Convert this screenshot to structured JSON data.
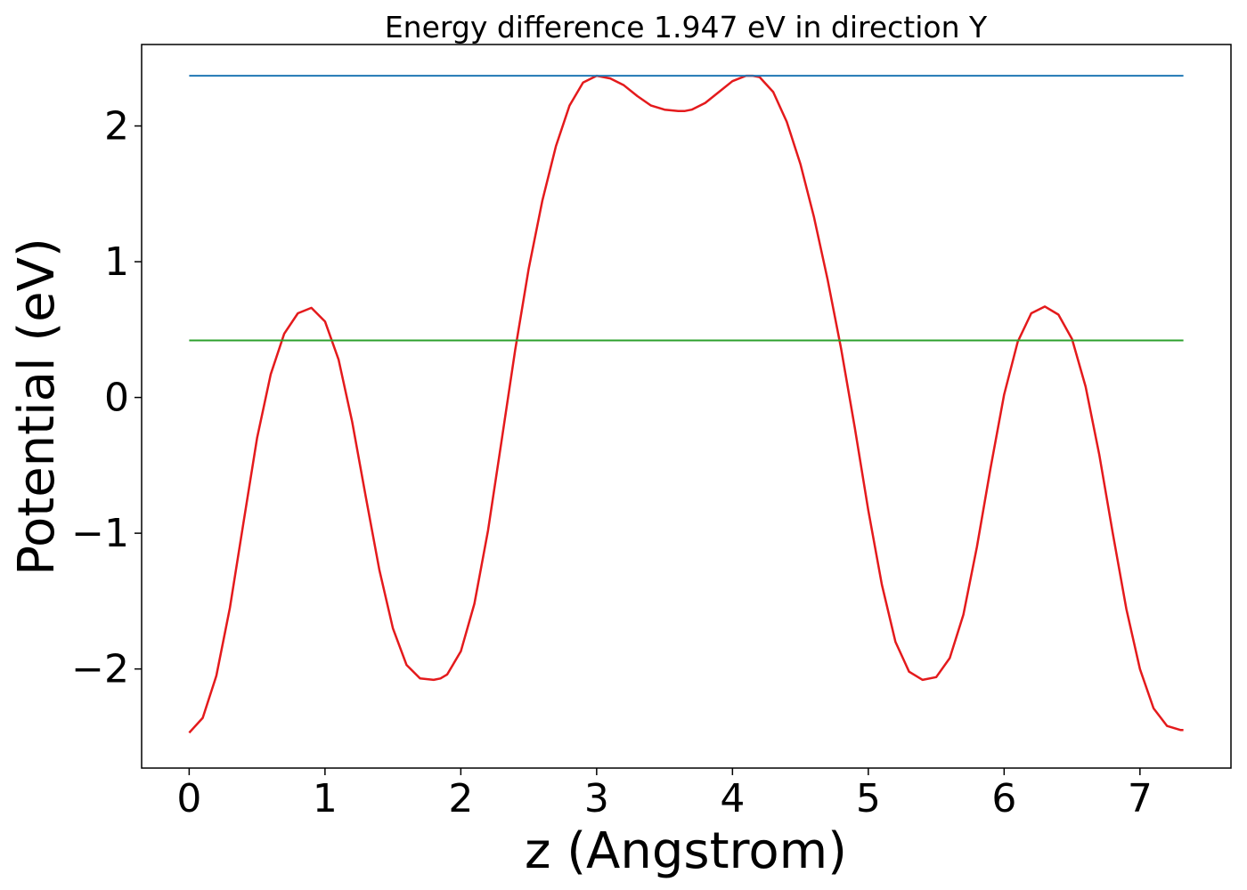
{
  "chart_data": {
    "type": "line",
    "title": "Energy difference 1.947 eV in direction Y",
    "xlabel": "z (Angstrom)",
    "ylabel": "Potential (eV)",
    "xlim": [
      -0.35,
      7.67
    ],
    "ylim": [
      -2.73,
      2.6
    ],
    "xticks": [
      0,
      1,
      2,
      3,
      4,
      5,
      6,
      7
    ],
    "xtick_labels": [
      "0",
      "1",
      "2",
      "3",
      "4",
      "5",
      "6",
      "7"
    ],
    "yticks": [
      -2,
      -1,
      0,
      1,
      2
    ],
    "ytick_labels": [
      "−2",
      "−1",
      "0",
      "1",
      "2"
    ],
    "grid": false,
    "series": [
      {
        "color": "#e41a1c",
        "x": [
          0.0,
          0.1,
          0.2,
          0.3,
          0.4,
          0.5,
          0.6,
          0.7,
          0.8,
          0.9,
          1.0,
          1.1,
          1.2,
          1.3,
          1.4,
          1.5,
          1.6,
          1.7,
          1.8,
          1.85,
          1.9,
          2.0,
          2.1,
          2.2,
          2.3,
          2.4,
          2.5,
          2.6,
          2.7,
          2.8,
          2.9,
          3.0,
          3.1,
          3.2,
          3.3,
          3.4,
          3.5,
          3.6,
          3.65,
          3.7,
          3.8,
          3.9,
          4.0,
          4.1,
          4.15,
          4.2,
          4.3,
          4.4,
          4.5,
          4.6,
          4.7,
          4.8,
          4.9,
          5.0,
          5.1,
          5.2,
          5.3,
          5.4,
          5.5,
          5.6,
          5.7,
          5.8,
          5.9,
          6.0,
          6.1,
          6.2,
          6.3,
          6.4,
          6.5,
          6.6,
          6.7,
          6.8,
          6.9,
          7.0,
          7.1,
          7.2,
          7.3,
          7.32
        ],
        "y": [
          -2.47,
          -2.36,
          -2.05,
          -1.55,
          -0.92,
          -0.3,
          0.17,
          0.47,
          0.62,
          0.66,
          0.56,
          0.28,
          -0.18,
          -0.73,
          -1.27,
          -1.7,
          -1.97,
          -2.07,
          -2.08,
          -2.07,
          -2.04,
          -1.87,
          -1.52,
          -0.98,
          -0.32,
          0.35,
          0.95,
          1.45,
          1.85,
          2.15,
          2.32,
          2.37,
          2.35,
          2.3,
          2.22,
          2.15,
          2.12,
          2.11,
          2.11,
          2.12,
          2.17,
          2.25,
          2.33,
          2.37,
          2.37,
          2.36,
          2.25,
          2.03,
          1.72,
          1.33,
          0.87,
          0.36,
          -0.22,
          -0.83,
          -1.38,
          -1.8,
          -2.02,
          -2.08,
          -2.06,
          -1.92,
          -1.6,
          -1.1,
          -0.52,
          0.02,
          0.41,
          0.62,
          0.67,
          0.61,
          0.43,
          0.08,
          -0.42,
          -1.0,
          -1.56,
          -2.0,
          -2.29,
          -2.42,
          -2.45,
          -2.45
        ]
      },
      {
        "color": "#1f77b4",
        "x": [
          0.0,
          7.32
        ],
        "y": [
          2.37,
          2.37
        ]
      },
      {
        "color": "#2ca02c",
        "x": [
          0.0,
          7.32
        ],
        "y": [
          0.42,
          0.42
        ]
      }
    ]
  }
}
